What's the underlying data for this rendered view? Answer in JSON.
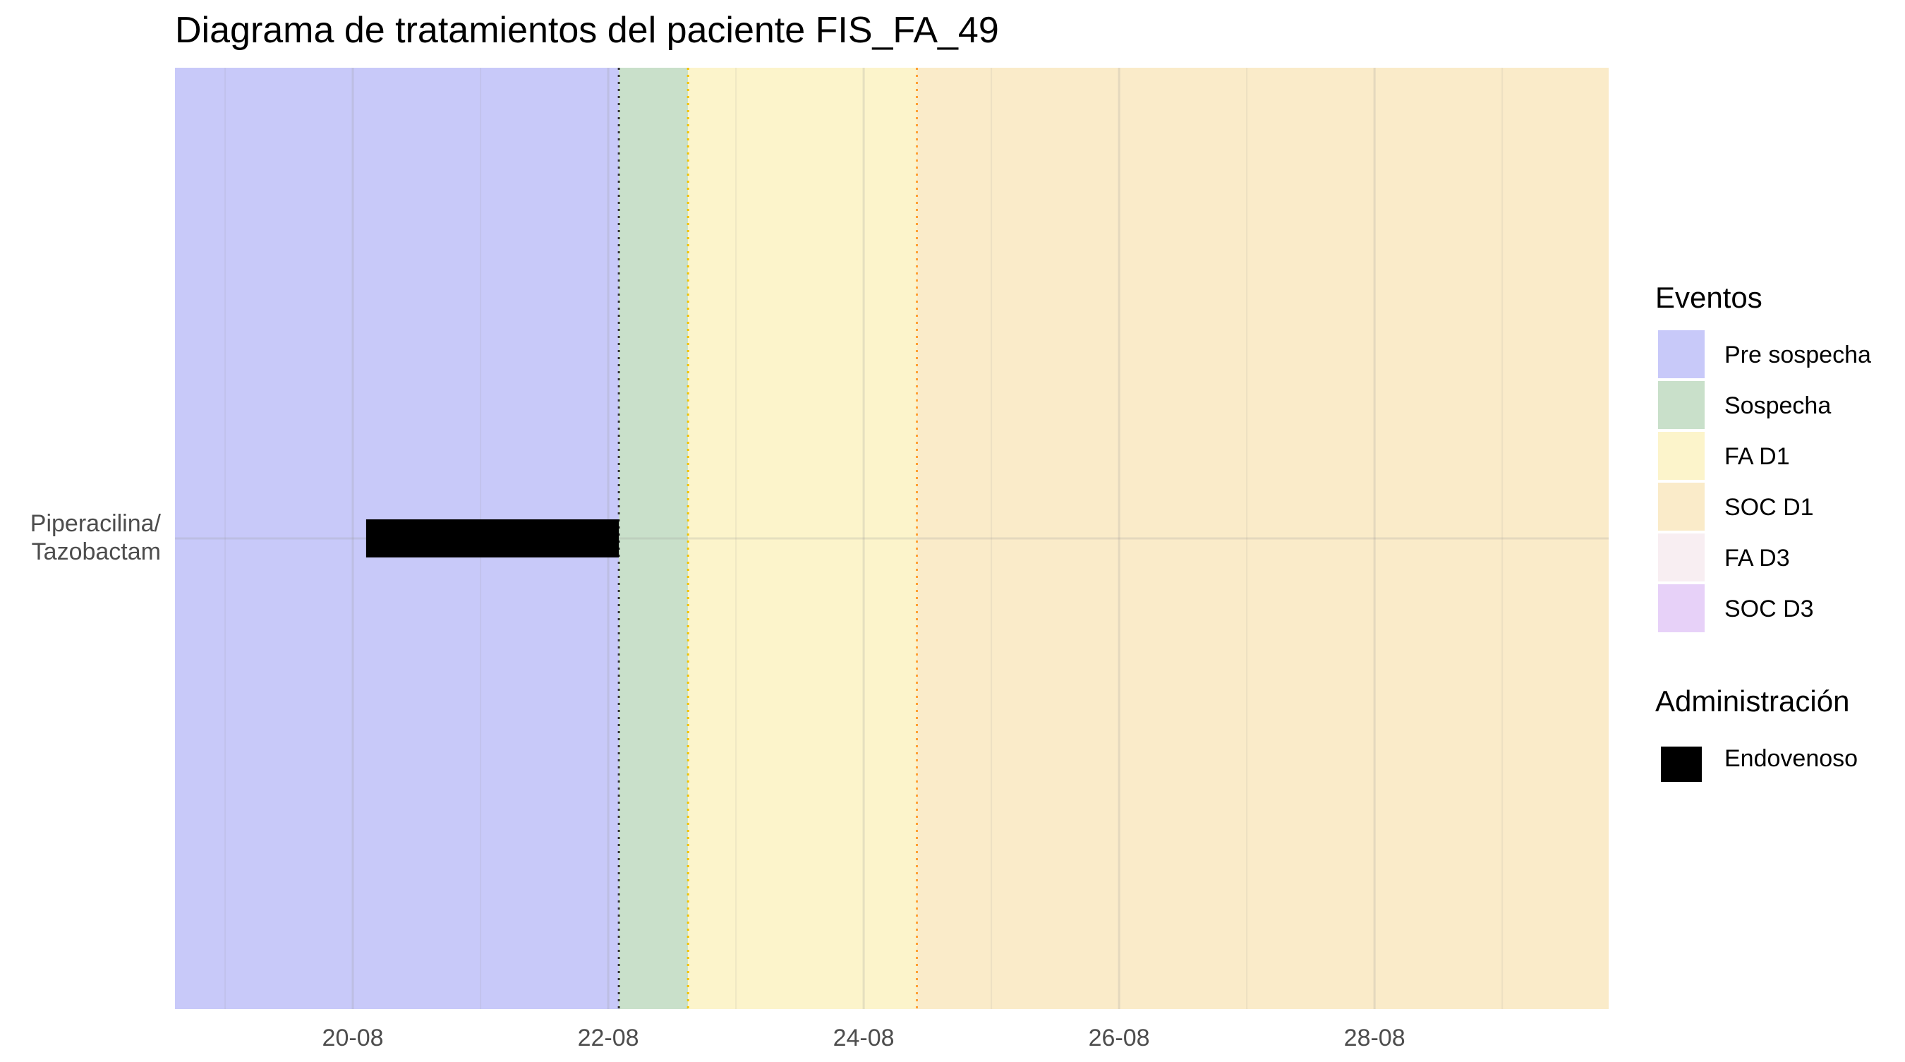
{
  "chart_data": {
    "type": "gantt",
    "title": "Diagrama de tratamientos del paciente FIS_FA_49",
    "xlabel": "",
    "ylabel": "",
    "x_ticks": [
      "20-08",
      "22-08",
      "24-08",
      "26-08",
      "28-08"
    ],
    "x_range_days": [
      "2024-08-18T14:35",
      "2024-08-29T20:00"
    ],
    "categories": [
      "Piperacilina/\nTazobactam"
    ],
    "category_lines": [
      "Piperacilina/",
      "Tazobactam"
    ],
    "event_bands": [
      {
        "name": "Pre sospecha",
        "start": "2024-08-18T14:35",
        "end": "2024-08-22T02:00",
        "color": "#c8c9f9"
      },
      {
        "name": "Sospecha",
        "start": "2024-08-22T02:00",
        "end": "2024-08-22T15:00",
        "color": "#c9e0ca"
      },
      {
        "name": "FA D1",
        "start": "2024-08-22T15:00",
        "end": "2024-08-24T10:00",
        "color": "#fcf4cb"
      },
      {
        "name": "SOC D1",
        "start": "2024-08-24T10:00",
        "end": "2024-08-29T20:00",
        "color": "#faebc9"
      }
    ],
    "vertical_markers": [
      {
        "at": "2024-08-22T02:00",
        "color": "#333333"
      },
      {
        "at": "2024-08-22T15:00",
        "color": "#f2c400"
      },
      {
        "at": "2024-08-24T10:00",
        "color": "#ffa033"
      }
    ],
    "segments": [
      {
        "category": 0,
        "start": "2024-08-20T02:30",
        "end": "2024-08-22T02:00",
        "route": "Endovenoso",
        "color": "#000000"
      }
    ],
    "grid": true,
    "legend_position": "right",
    "legends": [
      {
        "title": "Eventos",
        "items": [
          {
            "label": "Pre sospecha",
            "color": "#c8c9f9"
          },
          {
            "label": "Sospecha",
            "color": "#c9e0ca"
          },
          {
            "label": "FA D1",
            "color": "#fcf4cb"
          },
          {
            "label": "SOC D1",
            "color": "#faebc9"
          },
          {
            "label": "FA D3",
            "color": "#f8eef2"
          },
          {
            "label": "SOC D3",
            "color": "#e7d1f8"
          }
        ]
      },
      {
        "title": "Administración",
        "items": [
          {
            "label": "Endovenoso",
            "color": "#000000"
          }
        ]
      }
    ]
  }
}
